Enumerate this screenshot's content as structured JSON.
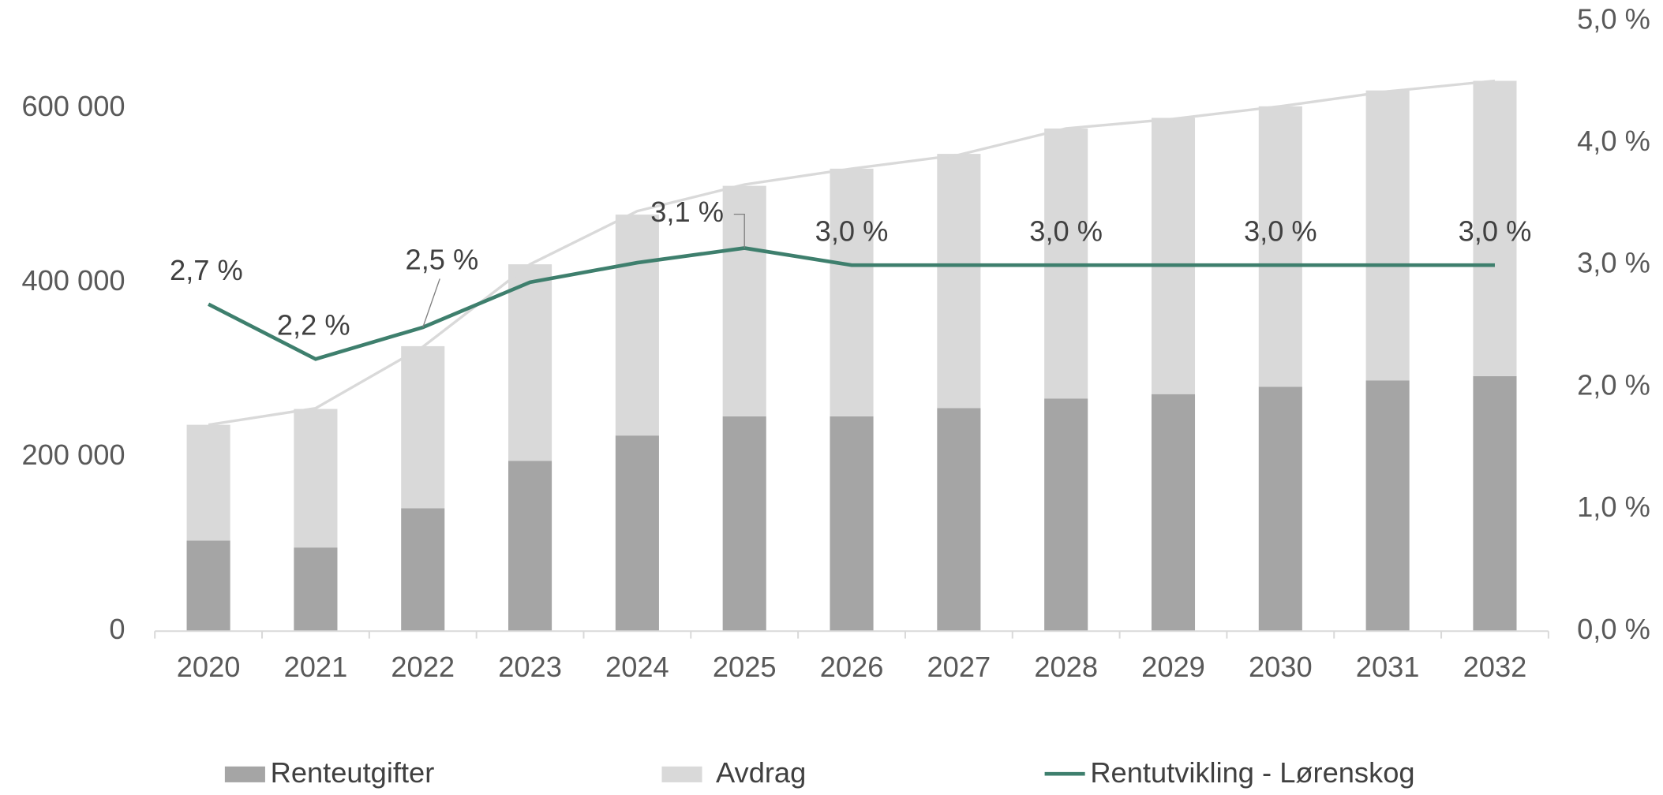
{
  "chart_data": {
    "type": "bar_line",
    "categories": [
      "2020",
      "2021",
      "2022",
      "2023",
      "2024",
      "2025",
      "2026",
      "2027",
      "2028",
      "2029",
      "2030",
      "2031",
      "2032"
    ],
    "series": [
      {
        "name": "Renteutgifter",
        "color": "#a5a5a5",
        "stack": true,
        "values": [
          104000,
          96000,
          141000,
          195500,
          224500,
          246500,
          246500,
          256000,
          267000,
          272000,
          280500,
          287800,
          292700
        ]
      },
      {
        "name": "Avdrag",
        "color": "#d9d9d9",
        "stack": true,
        "values": [
          132800,
          159000,
          186000,
          225500,
          253500,
          264500,
          284200,
          291700,
          309800,
          317000,
          321800,
          332700,
          338800
        ]
      },
      {
        "name": "Rentutvikling - Lørenskog",
        "color": "#3e7f6d",
        "axis": "y2",
        "line": true,
        "values": [
          2.68,
          2.23,
          2.49,
          2.86,
          3.02,
          3.14,
          3.0,
          3.0,
          3.0,
          3.0,
          3.0,
          3.0,
          3.0
        ],
        "value_labels": [
          "2,7 %",
          "2,2 %",
          "2,5 %",
          null,
          null,
          "3,1 %",
          "3,0 %",
          null,
          "3,0 %",
          null,
          "3,0 %",
          null,
          "3,0 %"
        ]
      },
      {
        "color": "#d9d9d9",
        "line": true,
        "values": [
          236800,
          255800,
          326300,
          421000,
          482000,
          512500,
          530700,
          546500,
          576800,
          587800,
          602300,
          619300,
          631500
        ]
      }
    ],
    "ylim": [
      0,
      700000
    ],
    "yticks": [
      0,
      {
        "value": 200000,
        "label": "200 000"
      },
      {
        "value": 400000,
        "label": "400 000"
      },
      {
        "value": 600000,
        "label": "600 000"
      }
    ],
    "y2lim": [
      0,
      5
    ],
    "y2ticks": [
      {
        "value": 0,
        "label": "0,0 %"
      },
      {
        "value": 1,
        "label": "1,0 %"
      },
      {
        "value": 2,
        "label": "2,0 %"
      },
      {
        "value": 3,
        "label": "3,0 %"
      },
      {
        "value": 4,
        "label": "4,0 %"
      },
      {
        "value": 5,
        "label": "5,0 %"
      }
    ],
    "legend": "bottom"
  }
}
